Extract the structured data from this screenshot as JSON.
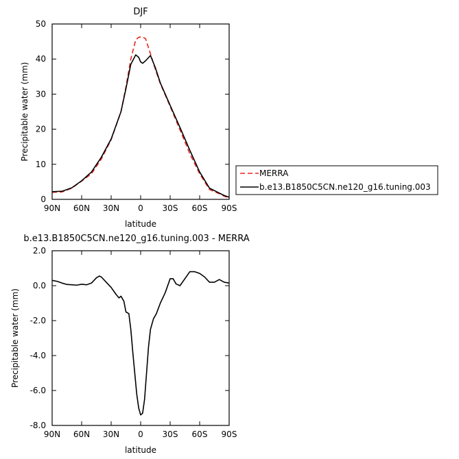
{
  "chart_data": [
    {
      "type": "line",
      "title": "DJF",
      "xlabel": "latitude",
      "ylabel": "Precipitable water  (mm)",
      "xlim": [
        90,
        -90
      ],
      "ylim": [
        0,
        50
      ],
      "xticks": [
        90,
        60,
        30,
        0,
        -30,
        -60,
        -90
      ],
      "xtick_labels": [
        "90N",
        "60N",
        "30N",
        "0",
        "30S",
        "60S",
        "90S"
      ],
      "yticks": [
        0,
        10,
        20,
        30,
        40,
        50
      ],
      "ytick_labels": [
        "0",
        "10",
        "20",
        "30",
        "40",
        "50"
      ],
      "legend_position": "right",
      "series": [
        {
          "name": "MERRA",
          "color": "#e8231f",
          "dash": "dashed",
          "x": [
            90,
            80,
            70,
            60,
            50,
            40,
            30,
            20,
            15,
            10,
            5,
            2,
            0,
            -2,
            -5,
            -10,
            -15,
            -20,
            -30,
            -40,
            -50,
            -60,
            -70,
            -80,
            -85,
            -90
          ],
          "y": [
            2.0,
            2.1,
            3.2,
            5.2,
            7.3,
            11.5,
            17.0,
            25.0,
            32.0,
            40.0,
            45.5,
            46.2,
            46.3,
            46.3,
            45.8,
            41.5,
            37.0,
            33.0,
            26.5,
            19.8,
            13.0,
            7.3,
            2.8,
            1.6,
            0.9,
            0.4
          ]
        },
        {
          "name": "b.e13.B1850C5CN.ne120_g16.tuning.003",
          "color": "#000000",
          "dash": "solid",
          "x": [
            90,
            80,
            70,
            60,
            50,
            40,
            30,
            20,
            15,
            10,
            5,
            2,
            0,
            -2,
            -5,
            -10,
            -15,
            -20,
            -30,
            -40,
            -50,
            -60,
            -70,
            -80,
            -85,
            -90
          ],
          "y": [
            2.2,
            2.3,
            3.3,
            5.3,
            7.8,
            12.0,
            17.2,
            25.0,
            31.5,
            38.5,
            41.2,
            40.5,
            39.2,
            38.8,
            39.5,
            41.0,
            37.5,
            33.2,
            26.8,
            20.5,
            14.0,
            7.8,
            3.2,
            1.8,
            1.1,
            0.6
          ]
        }
      ]
    },
    {
      "type": "line",
      "title": "b.e13.B1850C5CN.ne120_g16.tuning.003 - MERRA",
      "xlabel": "latitude",
      "ylabel": "Precipitable water  (mm)",
      "xlim": [
        90,
        -90
      ],
      "ylim": [
        -8,
        2
      ],
      "xticks": [
        90,
        60,
        30,
        0,
        -30,
        -60,
        -90
      ],
      "xtick_labels": [
        "90N",
        "60N",
        "30N",
        "0",
        "30S",
        "60S",
        "90S"
      ],
      "yticks": [
        -8,
        -6,
        -4,
        -2,
        0,
        2
      ],
      "ytick_labels": [
        "-8.0",
        "-6.0",
        "-4.0",
        "-2.0",
        "0.0",
        "2.0"
      ],
      "series": [
        {
          "color": "#000000",
          "dash": "solid",
          "x": [
            90,
            85,
            80,
            75,
            70,
            65,
            60,
            55,
            50,
            45,
            42,
            40,
            35,
            30,
            25,
            22,
            20,
            17,
            15,
            12,
            10,
            8,
            6,
            4,
            2,
            0,
            -2,
            -4,
            -6,
            -8,
            -10,
            -13,
            -16,
            -20,
            -25,
            -30,
            -33,
            -36,
            -40,
            -45,
            -50,
            -55,
            -60,
            -65,
            -70,
            -75,
            -80,
            -85,
            -90
          ],
          "y": [
            0.3,
            0.25,
            0.15,
            0.07,
            0.05,
            0.03,
            0.08,
            0.05,
            0.15,
            0.45,
            0.55,
            0.5,
            0.2,
            -0.1,
            -0.5,
            -0.7,
            -0.6,
            -0.9,
            -1.5,
            -1.6,
            -2.5,
            -3.8,
            -5.0,
            -6.2,
            -7.0,
            -7.4,
            -7.3,
            -6.5,
            -5.0,
            -3.5,
            -2.5,
            -1.9,
            -1.6,
            -1.0,
            -0.4,
            0.4,
            0.4,
            0.1,
            0.0,
            0.4,
            0.8,
            0.8,
            0.7,
            0.5,
            0.2,
            0.2,
            0.35,
            0.2,
            0.15
          ]
        }
      ]
    }
  ]
}
